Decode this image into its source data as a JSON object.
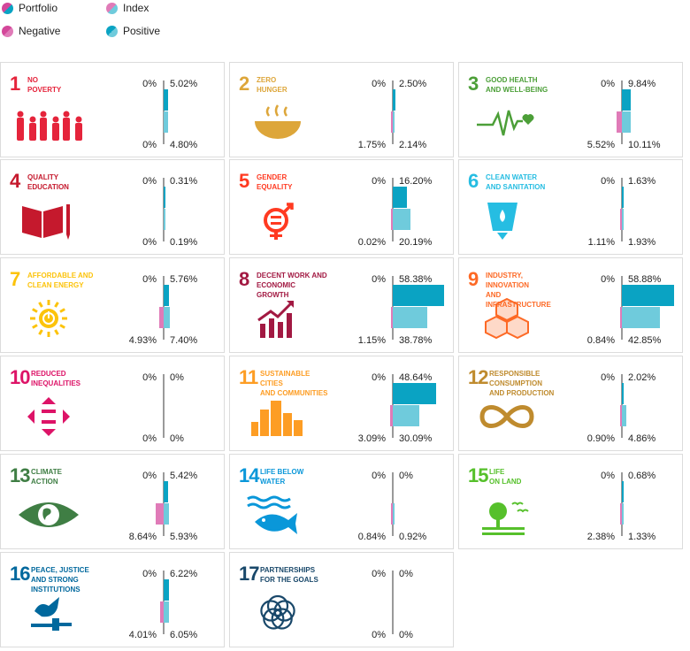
{
  "legend": {
    "portfolio": "Portfolio",
    "index": "Index",
    "negative": "Negative",
    "positive": "Positive"
  },
  "colors": {
    "portfolio": "#0aa3c3",
    "index": "#6fcbdc",
    "negative": "#d4479a",
    "negative_index": "#e07bb8",
    "axis": "#9a9a9a"
  },
  "chart_data": {
    "type": "bar",
    "orientation": "horizontal",
    "series": [
      {
        "name": "Portfolio"
      },
      {
        "name": "Index"
      }
    ],
    "goals": [
      {
        "num": "1",
        "title": "NO\nPOVERTY",
        "color": "#e5243b",
        "icon": "family-icon",
        "portfolio": {
          "neg": 0,
          "pos": 5.02,
          "neg_label": "0%",
          "pos_label": "5.02%"
        },
        "index": {
          "neg": 0,
          "pos": 4.8,
          "neg_label": "0%",
          "pos_label": "4.80%"
        }
      },
      {
        "num": "2",
        "title": "ZERO\nHUNGER",
        "color": "#dda63a",
        "icon": "bowl-icon",
        "portfolio": {
          "neg": 0,
          "pos": 2.5,
          "neg_label": "0%",
          "pos_label": "2.50%"
        },
        "index": {
          "neg": 1.75,
          "pos": 2.14,
          "neg_label": "1.75%",
          "pos_label": "2.14%"
        }
      },
      {
        "num": "3",
        "title": "GOOD HEALTH\nAND WELL-BEING",
        "color": "#4c9f38",
        "icon": "heartbeat-icon",
        "portfolio": {
          "neg": 0,
          "pos": 9.84,
          "neg_label": "0%",
          "pos_label": "9.84%"
        },
        "index": {
          "neg": 5.52,
          "pos": 10.11,
          "neg_label": "5.52%",
          "pos_label": "10.11%"
        }
      },
      {
        "num": "4",
        "title": "QUALITY\nEDUCATION",
        "color": "#c5192d",
        "icon": "book-icon",
        "portfolio": {
          "neg": 0,
          "pos": 0.31,
          "neg_label": "0%",
          "pos_label": "0.31%"
        },
        "index": {
          "neg": 0,
          "pos": 0.19,
          "neg_label": "0%",
          "pos_label": "0.19%"
        }
      },
      {
        "num": "5",
        "title": "GENDER\nEQUALITY",
        "color": "#ff3a21",
        "icon": "gender-icon",
        "portfolio": {
          "neg": 0,
          "pos": 16.2,
          "neg_label": "0%",
          "pos_label": "16.20%"
        },
        "index": {
          "neg": 0.02,
          "pos": 20.19,
          "neg_label": "0.02%",
          "pos_label": "20.19%"
        }
      },
      {
        "num": "6",
        "title": "CLEAN WATER\nAND SANITATION",
        "color": "#26bde2",
        "icon": "water-glass-icon",
        "portfolio": {
          "neg": 0,
          "pos": 1.63,
          "neg_label": "0%",
          "pos_label": "1.63%"
        },
        "index": {
          "neg": 1.11,
          "pos": 1.93,
          "neg_label": "1.11%",
          "pos_label": "1.93%"
        }
      },
      {
        "num": "7",
        "title": "AFFORDABLE AND\nCLEAN ENERGY",
        "color": "#fcc30b",
        "icon": "sun-power-icon",
        "portfolio": {
          "neg": 0,
          "pos": 5.76,
          "neg_label": "0%",
          "pos_label": "5.76%"
        },
        "index": {
          "neg": 4.93,
          "pos": 7.4,
          "neg_label": "4.93%",
          "pos_label": "7.40%"
        }
      },
      {
        "num": "8",
        "title": "DECENT WORK AND\nECONOMIC GROWTH",
        "color": "#a21942",
        "icon": "growth-chart-icon",
        "portfolio": {
          "neg": 0,
          "pos": 58.38,
          "neg_label": "0%",
          "pos_label": "58.38%"
        },
        "index": {
          "neg": 1.15,
          "pos": 38.78,
          "neg_label": "1.15%",
          "pos_label": "38.78%"
        }
      },
      {
        "num": "9",
        "title": "INDUSTRY, INNOVATION\nAND INFRASTRUCTURE",
        "color": "#fd6925",
        "icon": "cubes-icon",
        "portfolio": {
          "neg": 0,
          "pos": 58.88,
          "neg_label": "0%",
          "pos_label": "58.88%"
        },
        "index": {
          "neg": 0.84,
          "pos": 42.85,
          "neg_label": "0.84%",
          "pos_label": "42.85%"
        }
      },
      {
        "num": "10",
        "title": "REDUCED\nINEQUALITIES",
        "color": "#dd1367",
        "icon": "equality-arrows-icon",
        "portfolio": {
          "neg": 0,
          "pos": 0,
          "neg_label": "0%",
          "pos_label": "0%"
        },
        "index": {
          "neg": 0,
          "pos": 0,
          "neg_label": "0%",
          "pos_label": "0%"
        }
      },
      {
        "num": "11",
        "title": "SUSTAINABLE CITIES\nAND COMMUNITIES",
        "color": "#fd9d24",
        "icon": "city-icon",
        "portfolio": {
          "neg": 0,
          "pos": 48.64,
          "neg_label": "0%",
          "pos_label": "48.64%"
        },
        "index": {
          "neg": 3.09,
          "pos": 30.09,
          "neg_label": "3.09%",
          "pos_label": "30.09%"
        }
      },
      {
        "num": "12",
        "title": "RESPONSIBLE\nCONSUMPTION\nAND PRODUCTION",
        "color": "#bf8b2e",
        "icon": "infinity-icon",
        "portfolio": {
          "neg": 0,
          "pos": 2.02,
          "neg_label": "0%",
          "pos_label": "2.02%"
        },
        "index": {
          "neg": 0.9,
          "pos": 4.86,
          "neg_label": "0.90%",
          "pos_label": "4.86%"
        }
      },
      {
        "num": "13",
        "title": "CLIMATE\nACTION",
        "color": "#3f7e44",
        "icon": "earth-eye-icon",
        "portfolio": {
          "neg": 0,
          "pos": 5.42,
          "neg_label": "0%",
          "pos_label": "5.42%"
        },
        "index": {
          "neg": 8.64,
          "pos": 5.93,
          "neg_label": "8.64%",
          "pos_label": "5.93%"
        }
      },
      {
        "num": "14",
        "title": "LIFE BELOW\nWATER",
        "color": "#0a97d9",
        "icon": "fish-icon",
        "portfolio": {
          "neg": 0,
          "pos": 0,
          "neg_label": "0%",
          "pos_label": "0%"
        },
        "index": {
          "neg": 0.84,
          "pos": 0.92,
          "neg_label": "0.84%",
          "pos_label": "0.92%"
        }
      },
      {
        "num": "15",
        "title": "LIFE\nON LAND",
        "color": "#56c02b",
        "icon": "tree-birds-icon",
        "portfolio": {
          "neg": 0,
          "pos": 0.68,
          "neg_label": "0%",
          "pos_label": "0.68%"
        },
        "index": {
          "neg": 2.38,
          "pos": 1.33,
          "neg_label": "2.38%",
          "pos_label": "1.33%"
        }
      },
      {
        "num": "16",
        "title": "PEACE, JUSTICE\nAND STRONG\nINSTITUTIONS",
        "color": "#00689d",
        "icon": "dove-gavel-icon",
        "portfolio": {
          "neg": 0,
          "pos": 6.22,
          "neg_label": "0%",
          "pos_label": "6.22%"
        },
        "index": {
          "neg": 4.01,
          "pos": 6.05,
          "neg_label": "4.01%",
          "pos_label": "6.05%"
        }
      },
      {
        "num": "17",
        "title": "PARTNERSHIPS\nFOR THE GOALS",
        "color": "#19486a",
        "icon": "rings-icon",
        "portfolio": {
          "neg": 0,
          "pos": 0,
          "neg_label": "0%",
          "pos_label": "0%"
        },
        "index": {
          "neg": 0,
          "pos": 0,
          "neg_label": "0%",
          "pos_label": "0%"
        }
      }
    ]
  }
}
